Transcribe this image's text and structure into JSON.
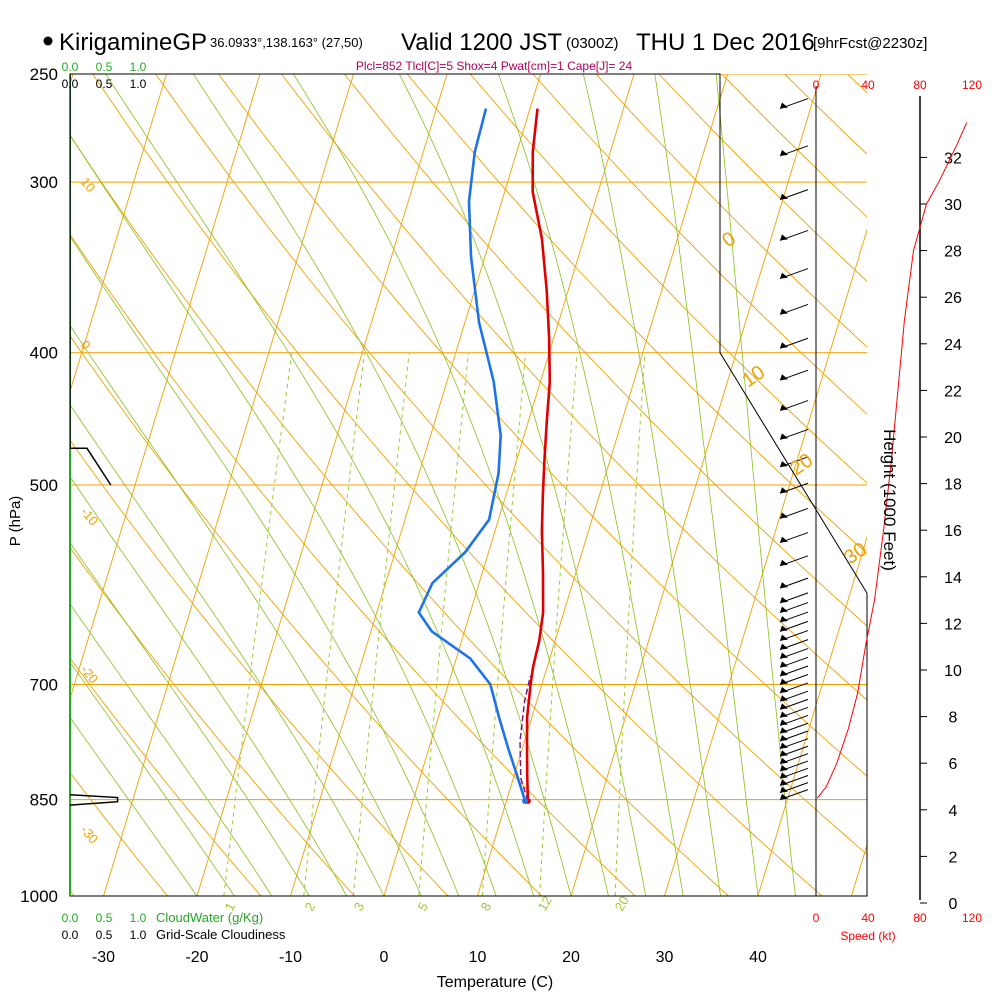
{
  "header": {
    "station": "KirigamineGP",
    "coords": "36.0933°,138.163° (27,50)",
    "valid": "Valid 1200 JST",
    "zulu": "(0300Z)",
    "date": "THU 1 Dec 2016",
    "forecast": "[9hrFcst@2230z]"
  },
  "indices": "Plcl=852 Tlcl[C]=5 Shox=4 Pwat[cm]=1 Cape[J]= 24",
  "chart_data": {
    "type": "line",
    "title": "",
    "xlabel": "Temperature (C)",
    "ylabel": "P (hPa)",
    "y2label": "Height (1000 Feet)",
    "x_ticks": [
      -30,
      -20,
      -10,
      0,
      10,
      20,
      30,
      40
    ],
    "xlim": [
      -34,
      36
    ],
    "p_ticks": [
      250,
      300,
      400,
      500,
      700,
      850,
      1000
    ],
    "ylim": [
      1000,
      250
    ],
    "height_ticks": [
      0,
      2,
      4,
      6,
      8,
      10,
      12,
      14,
      16,
      18,
      20,
      22,
      24,
      26,
      28,
      30,
      32
    ],
    "speed_ticks": [
      0,
      40,
      80,
      120
    ],
    "speed_label": "Speed (kt)",
    "cloudwater_ticks": [
      "0.0",
      "0.5",
      "1.0"
    ],
    "cloudwater_label": "CloudWater (g/Kg)",
    "cloudiness_ticks": [
      "0.0",
      "0.5",
      "1.0"
    ],
    "cloudiness_label": "Grid-Scale Cloudiness",
    "isotherm_labels": [
      "10",
      "0",
      "-10",
      "-20",
      "-30"
    ],
    "dry_adiabat_labels": [
      "0",
      "10",
      "20",
      "30"
    ],
    "mixing_ratio_labels": [
      "1",
      "2",
      "3",
      "5",
      "8",
      "12",
      "20"
    ],
    "series": [
      {
        "name": "temperature",
        "color": "#e00000",
        "points": [
          [
            12.3,
            852
          ],
          [
            11.5,
            820
          ],
          [
            10.5,
            780
          ],
          [
            9.5,
            740
          ],
          [
            8.8,
            700
          ],
          [
            8.5,
            680
          ],
          [
            8.3,
            650
          ],
          [
            7.8,
            620
          ],
          [
            6.5,
            580
          ],
          [
            5.0,
            540
          ],
          [
            4.0,
            510
          ],
          [
            3.0,
            480
          ],
          [
            2.0,
            450
          ],
          [
            1.0,
            420
          ],
          [
            -0.5,
            390
          ],
          [
            -2.3,
            360
          ],
          [
            -4.5,
            330
          ],
          [
            -7.0,
            305
          ],
          [
            -8.3,
            285
          ],
          [
            -9.2,
            265
          ]
        ]
      },
      {
        "name": "dewpoint",
        "color": "#1e73e6",
        "points": [
          [
            12.0,
            852
          ],
          [
            10.5,
            820
          ],
          [
            8.5,
            780
          ],
          [
            6.5,
            740
          ],
          [
            4.5,
            700
          ],
          [
            1.5,
            670
          ],
          [
            -3.5,
            640
          ],
          [
            -5.5,
            620
          ],
          [
            -5.0,
            590
          ],
          [
            -2.5,
            560
          ],
          [
            -1.0,
            530
          ],
          [
            -1.5,
            490
          ],
          [
            -2.5,
            460
          ],
          [
            -5.0,
            420
          ],
          [
            -8.5,
            380
          ],
          [
            -11.5,
            340
          ],
          [
            -13.5,
            310
          ],
          [
            -14.5,
            285
          ],
          [
            -14.7,
            265
          ]
        ]
      },
      {
        "name": "parcel",
        "color": "#7a1a7a",
        "points": [
          [
            12.3,
            852
          ],
          [
            10.8,
            820
          ],
          [
            9.5,
            770
          ],
          [
            8.7,
            720
          ],
          [
            8.5,
            690
          ]
        ]
      }
    ],
    "speed_profile_kt": [
      [
        1,
        4.5
      ],
      [
        8,
        5.0
      ],
      [
        16,
        6.0
      ],
      [
        25,
        7.5
      ],
      [
        32,
        9.0
      ],
      [
        38,
        11.0
      ],
      [
        45,
        13.0
      ],
      [
        52,
        16.0
      ],
      [
        58,
        19.0
      ],
      [
        63,
        22.0
      ],
      [
        68,
        25.0
      ],
      [
        75,
        28.0
      ],
      [
        85,
        30.0
      ],
      [
        95,
        31.0
      ],
      [
        108,
        32.5
      ],
      [
        116,
        33.5
      ]
    ],
    "cloud_profile": [
      [
        0.0,
        250
      ],
      [
        0.0,
        470
      ],
      [
        0.25,
        470
      ],
      [
        0.6,
        500
      ]
    ],
    "cloud_bump": [
      [
        0.0,
        843
      ],
      [
        0.7,
        847
      ],
      [
        0.7,
        853
      ],
      [
        0.0,
        858
      ]
    ]
  },
  "colors": {
    "isotherm": "#f0a000",
    "mixing_ratio": "#99cc33",
    "moist_adiabat": "#88c020",
    "speed_axis": "#ff0000",
    "cloudwater": "#22aa22"
  }
}
